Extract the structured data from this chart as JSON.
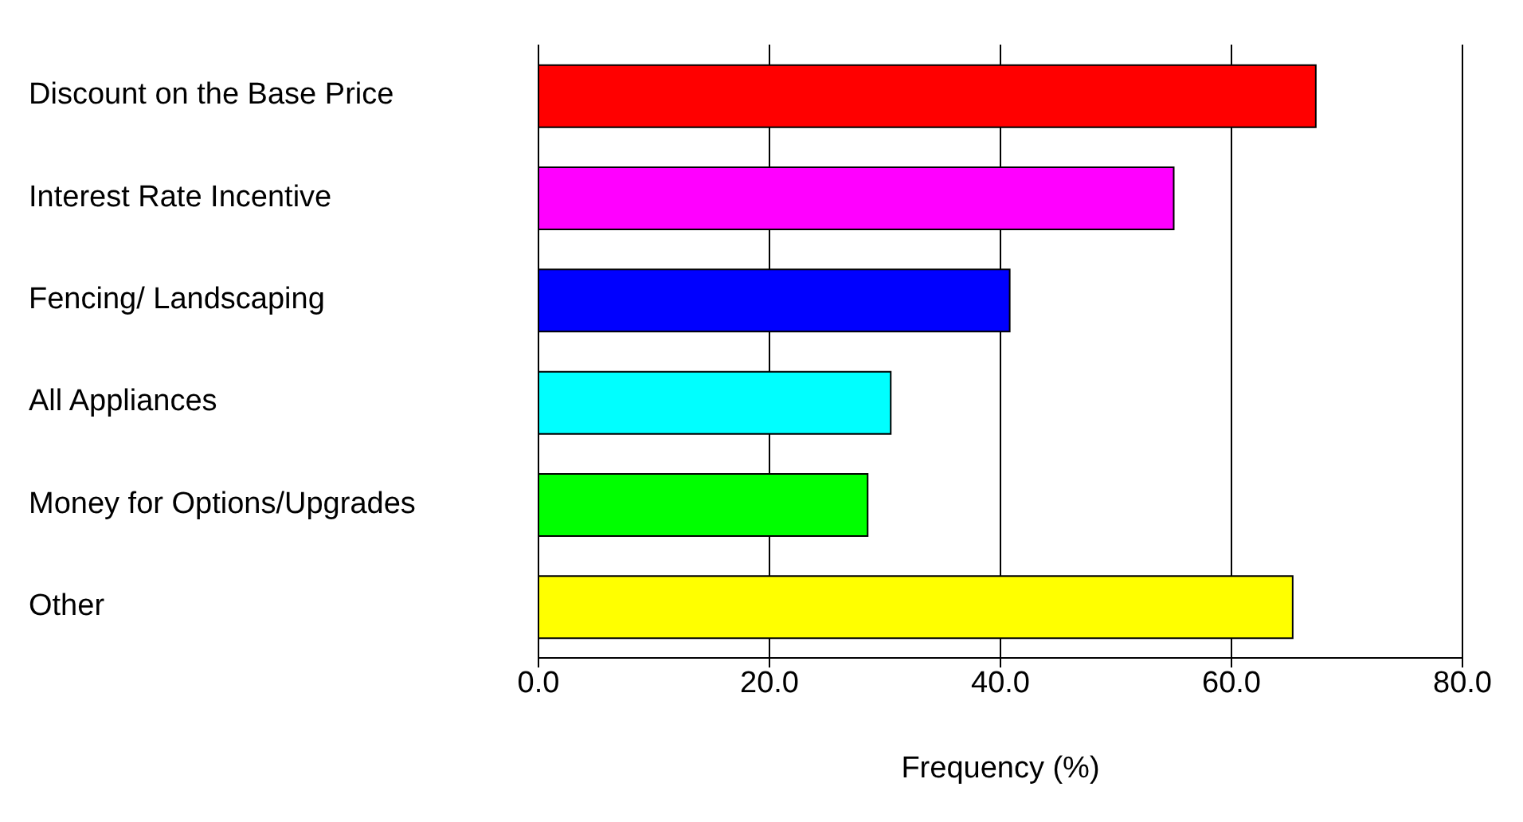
{
  "chart_data": {
    "type": "bar",
    "orientation": "horizontal",
    "categories": [
      "Discount on the Base Price",
      "Interest Rate Incentive",
      "Fencing/ Landscaping",
      "All Appliances",
      "Money for Options/Upgrades",
      "Other"
    ],
    "values": [
      67.3,
      55,
      40.8,
      30.5,
      28.5,
      65.3
    ],
    "colors": [
      "#ff0000",
      "#ff00ff",
      "#0000ff",
      "#00ffff",
      "#00ff00",
      "#ffff00"
    ],
    "xlim": [
      0,
      80
    ],
    "xticks": [
      {
        "value": 0,
        "label": "0.0"
      },
      {
        "value": 20,
        "label": "20.0"
      },
      {
        "value": 40,
        "label": "40.0"
      },
      {
        "value": 60,
        "label": "60.0"
      },
      {
        "value": 80,
        "label": "80.0"
      }
    ],
    "xlabel": "Frequency (%)",
    "grid": "x",
    "legend": false
  }
}
